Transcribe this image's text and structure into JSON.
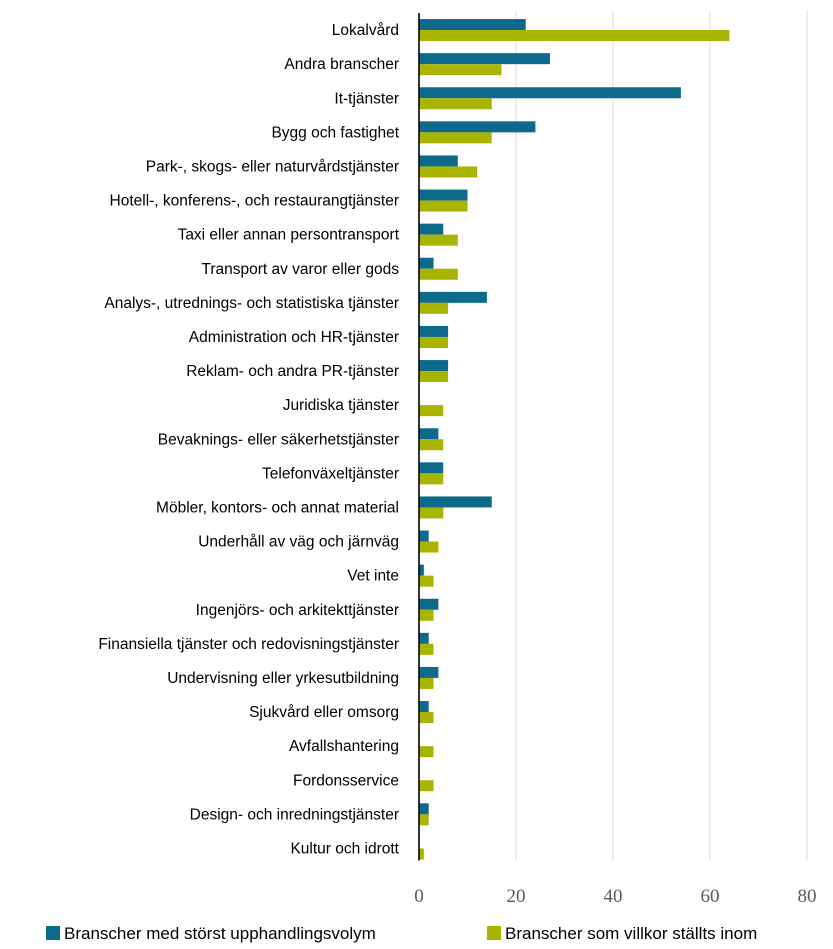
{
  "chart_data": {
    "type": "bar",
    "orientation": "horizontal",
    "title": "",
    "xlabel": "",
    "ylabel": "",
    "categories": [
      "Lokalvård",
      "Andra branscher",
      "It-tjänster",
      "Bygg och fastighet",
      "Park-, skogs- eller naturvårdstjänster",
      "Hotell-, konferens-, och restaurangtjänster",
      "Taxi eller annan persontransport",
      "Transport av varor eller gods",
      "Analys-, utrednings- och statistiska tjänster",
      "Administration och HR-tjänster",
      "Reklam- och andra PR-tjänster",
      "Juridiska tjänster",
      "Bevaknings- eller säkerhetstjänster",
      "Telefonväxeltjänster",
      "Möbler, kontors- och annat material",
      "Underhåll av väg och järnväg",
      "Vet inte",
      "Ingenjörs- och arkitekttjänster",
      "Finansiella tjänster och redovisningstjänster",
      "Undervisning eller yrkesutbildning",
      "Sjukvård eller omsorg",
      "Avfallshantering",
      "Fordonsservice",
      "Design- och inredningstjänster",
      "Kultur och idrott"
    ],
    "series": [
      {
        "name": "Branscher med störst upphandlingsvolym",
        "color": "#0e6a8a",
        "values": [
          22,
          27,
          54,
          24,
          8,
          10,
          5,
          3,
          14,
          6,
          6,
          0,
          4,
          5,
          15,
          2,
          1,
          4,
          2,
          4,
          2,
          0,
          0,
          2,
          0
        ]
      },
      {
        "name": "Branscher som villkor ställts inom",
        "color": "#a8b400",
        "values": [
          64,
          17,
          15,
          15,
          12,
          10,
          8,
          8,
          6,
          6,
          6,
          5,
          5,
          5,
          5,
          4,
          3,
          3,
          3,
          3,
          3,
          3,
          3,
          2,
          1
        ]
      }
    ],
    "xlim": [
      0,
      80
    ],
    "xticks": [
      0,
      20,
      40,
      60,
      80
    ],
    "grid": true,
    "legend_position": "bottom"
  }
}
